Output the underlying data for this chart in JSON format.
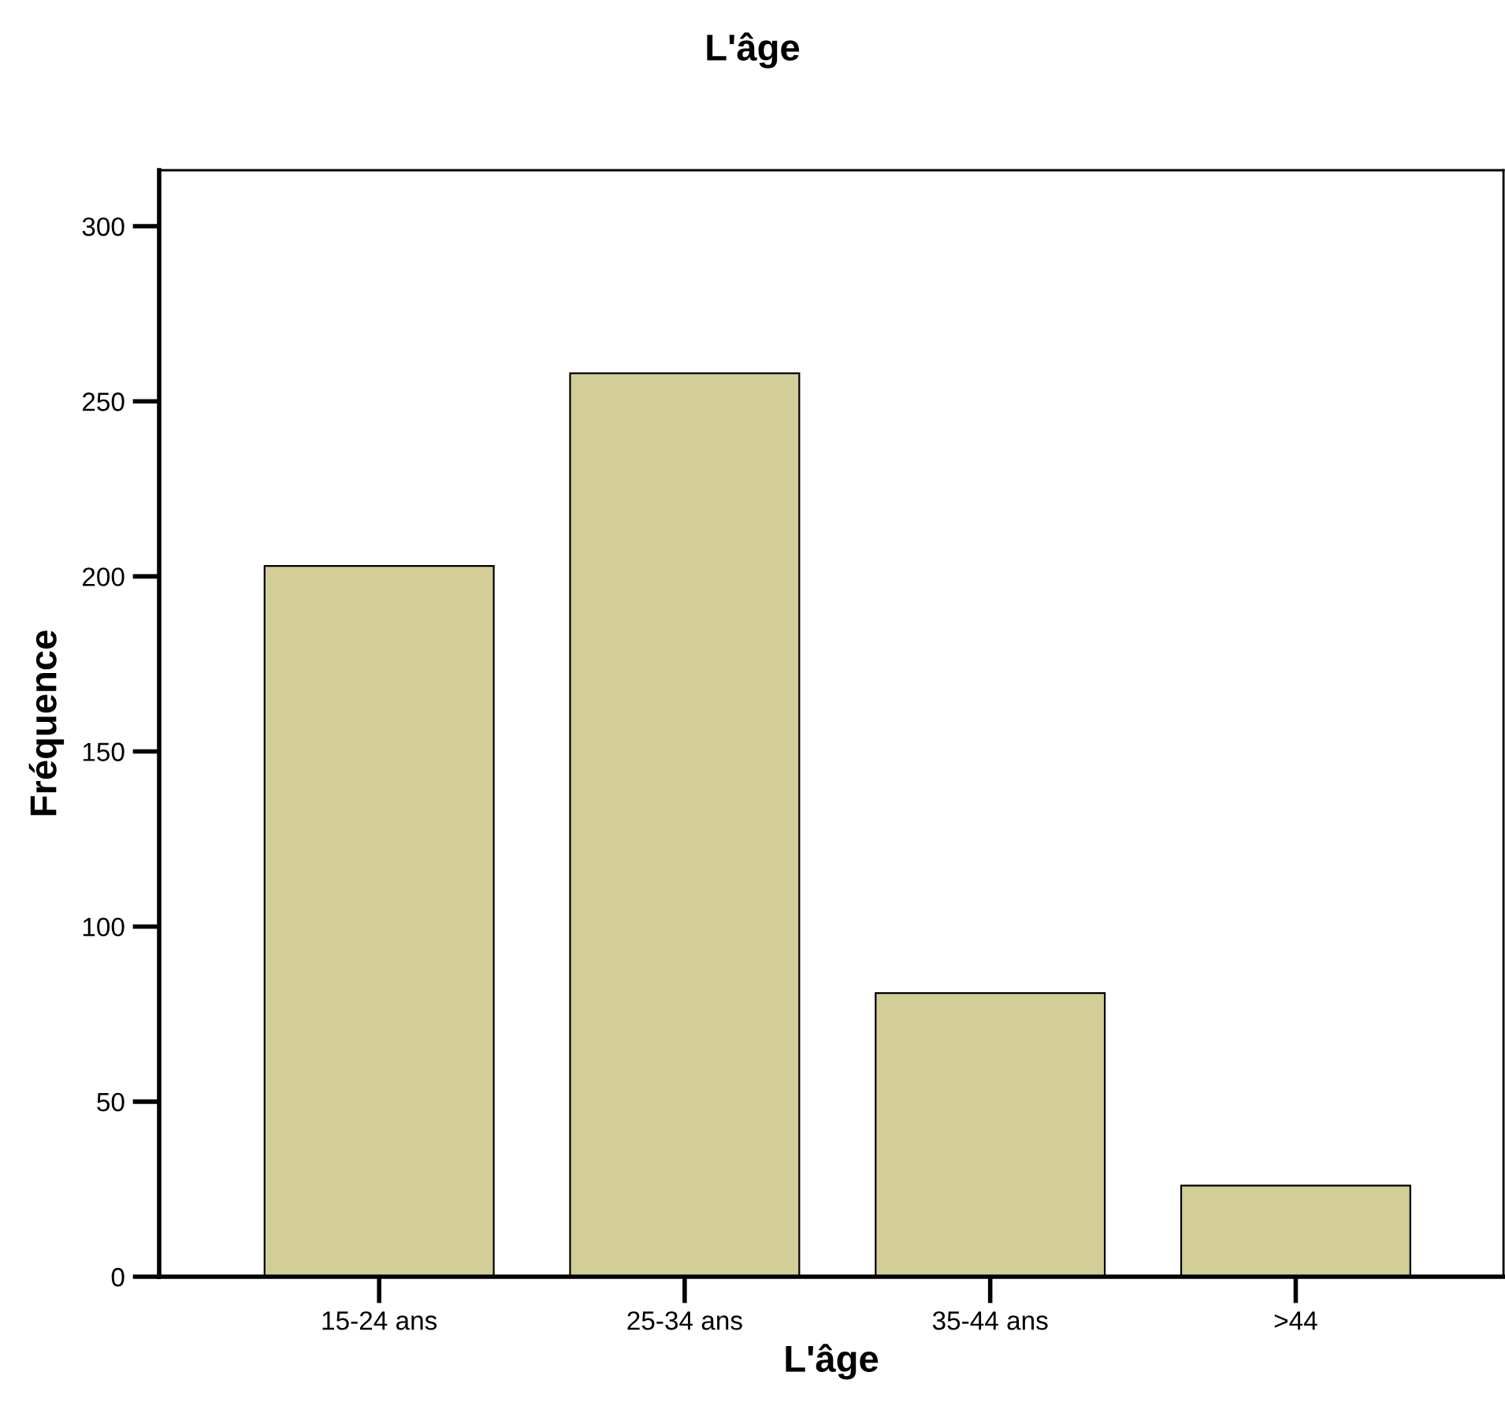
{
  "chart_data": {
    "type": "bar",
    "title": "L'âge",
    "xlabel": "L'âge",
    "ylabel": "Fréquence",
    "categories": [
      "15-24 ans",
      "25-34 ans",
      "35-44 ans",
      ">44"
    ],
    "values": [
      203,
      258,
      81,
      26
    ],
    "color": "#d3ce98",
    "ylim": [
      0,
      316
    ],
    "yticks": [
      0,
      50,
      100,
      150,
      200,
      250,
      300
    ],
    "grid": false,
    "legend": false
  }
}
